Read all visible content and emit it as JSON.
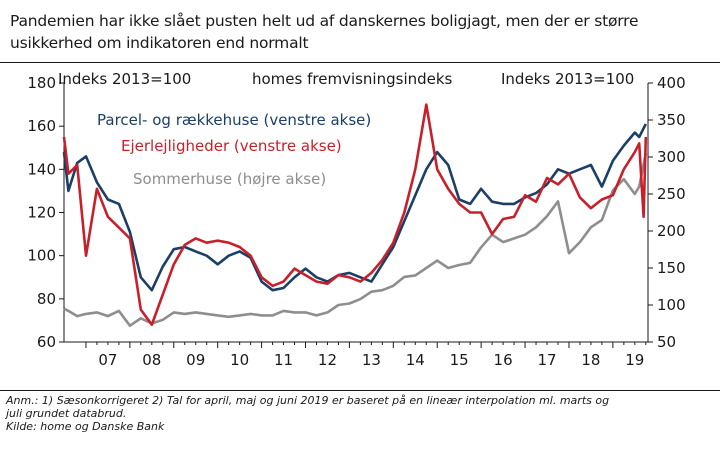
{
  "title_lines": [
    "Pandemien har ikke slået pusten helt ud af danskernes boligjagt, men der er større",
    "usikkerhed om indikatoren end normalt"
  ],
  "header_left": "Indeks 2013=100",
  "header_center": "homes fremvisningsindeks",
  "header_right": "Indeks 2013=100",
  "legend": [
    "Parcel- og rækkehuse (venstre akse)",
    "Ejerlejligheder (venstre akse)",
    "Sommerhuse (højre akse)"
  ],
  "notes": [
    "Anm.: 1) Sæsonkorrigeret 2) Tal for april, maj og juni 2019 er baseret på en lineær interpolation ml. marts og",
    "juli grundet databrud.",
    "Kilde: home og Danske Bank"
  ],
  "colors": {
    "houses": "#1b3f66",
    "apartments": "#c8202b",
    "summerhouses": "#8e8e8e",
    "axis": "#1a1a1a"
  },
  "chart_data": {
    "type": "line",
    "x_range": [
      2006.5,
      2019.8
    ],
    "x_tick_labels": [
      "07",
      "08",
      "09",
      "10",
      "11",
      "12",
      "13",
      "14",
      "15",
      "16",
      "17",
      "18",
      "19"
    ],
    "x_tick_positions": [
      2007,
      2008,
      2009,
      2010,
      2011,
      2012,
      2013,
      2014,
      2015,
      2016,
      2017,
      2018,
      2019
    ],
    "y_left": {
      "ylim": [
        60,
        180
      ],
      "ticks": [
        60,
        80,
        100,
        120,
        140,
        160,
        180
      ]
    },
    "y_right": {
      "ylim": [
        50,
        400
      ],
      "ticks": [
        50,
        100,
        150,
        200,
        250,
        300,
        350,
        400
      ]
    },
    "series": [
      {
        "name": "Parcel- og rækkehuse (venstre akse)",
        "axis": "left",
        "x": [
          2006.5,
          2006.6,
          2006.8,
          2007.0,
          2007.25,
          2007.5,
          2007.75,
          2008.0,
          2008.25,
          2008.5,
          2008.75,
          2009.0,
          2009.25,
          2009.5,
          2009.75,
          2010.0,
          2010.25,
          2010.5,
          2010.75,
          2011.0,
          2011.25,
          2011.5,
          2011.75,
          2012.0,
          2012.25,
          2012.5,
          2012.75,
          2013.0,
          2013.25,
          2013.5,
          2013.75,
          2014.0,
          2014.25,
          2014.5,
          2014.75,
          2015.0,
          2015.25,
          2015.5,
          2015.75,
          2016.0,
          2016.25,
          2016.5,
          2016.75,
          2017.0,
          2017.25,
          2017.5,
          2017.75,
          2018.0,
          2018.25,
          2018.5,
          2018.75,
          2019.0,
          2019.25,
          2019.5,
          2019.6,
          2019.75
        ],
        "y": [
          148,
          130,
          143,
          146,
          134,
          126,
          124,
          111,
          90,
          84,
          95,
          103,
          104,
          102,
          100,
          96,
          100,
          102,
          99,
          88,
          84,
          85,
          90,
          94,
          90,
          88,
          91,
          92,
          90,
          88,
          96,
          104,
          116,
          128,
          140,
          148,
          142,
          126,
          124,
          131,
          125,
          124,
          124,
          127,
          129,
          133,
          140,
          138,
          140,
          142,
          132,
          144,
          151,
          157,
          155,
          161
        ]
      },
      {
        "name": "Ejerlejligheder (venstre akse)",
        "axis": "left",
        "x": [
          2006.5,
          2006.6,
          2006.8,
          2007.0,
          2007.25,
          2007.5,
          2007.75,
          2008.0,
          2008.25,
          2008.5,
          2008.75,
          2009.0,
          2009.25,
          2009.5,
          2009.75,
          2010.0,
          2010.25,
          2010.5,
          2010.75,
          2011.0,
          2011.25,
          2011.5,
          2011.75,
          2012.0,
          2012.25,
          2012.5,
          2012.75,
          2013.0,
          2013.25,
          2013.5,
          2013.75,
          2014.0,
          2014.25,
          2014.5,
          2014.75,
          2015.0,
          2015.25,
          2015.5,
          2015.75,
          2016.0,
          2016.25,
          2016.5,
          2016.75,
          2017.0,
          2017.25,
          2017.5,
          2017.75,
          2018.0,
          2018.25,
          2018.5,
          2018.75,
          2019.0,
          2019.25,
          2019.5,
          2019.6,
          2019.7,
          2019.75
        ],
        "y": [
          155,
          138,
          142,
          100,
          131,
          118,
          113,
          108,
          75,
          68,
          82,
          96,
          105,
          108,
          106,
          107,
          106,
          104,
          100,
          90,
          86,
          88,
          94,
          91,
          88,
          87,
          91,
          90,
          88,
          92,
          98,
          106,
          120,
          140,
          170,
          140,
          131,
          124,
          120,
          120,
          110,
          117,
          118,
          128,
          125,
          136,
          133,
          138,
          127,
          122,
          126,
          128,
          140,
          148,
          152,
          118,
          155
        ]
      },
      {
        "name": "Sommerhuse (højre akse)",
        "axis": "right",
        "x": [
          2006.5,
          2006.6,
          2006.8,
          2007.0,
          2007.25,
          2007.5,
          2007.75,
          2008.0,
          2008.25,
          2008.5,
          2008.75,
          2009.0,
          2009.25,
          2009.5,
          2009.75,
          2010.0,
          2010.25,
          2010.5,
          2010.75,
          2011.0,
          2011.25,
          2011.5,
          2011.75,
          2012.0,
          2012.25,
          2012.5,
          2012.75,
          2013.0,
          2013.25,
          2013.5,
          2013.75,
          2014.0,
          2014.25,
          2014.5,
          2014.75,
          2015.0,
          2015.25,
          2015.5,
          2015.75,
          2016.0,
          2016.25,
          2016.5,
          2016.75,
          2017.0,
          2017.25,
          2017.5,
          2017.75,
          2018.0,
          2018.25,
          2018.5,
          2018.75,
          2019.0,
          2019.25,
          2019.5,
          2019.6,
          2019.75
        ],
        "y": [
          95,
          92,
          85,
          88,
          90,
          85,
          92,
          72,
          82,
          75,
          80,
          90,
          88,
          90,
          88,
          86,
          84,
          86,
          88,
          86,
          86,
          92,
          90,
          90,
          86,
          90,
          100,
          102,
          108,
          118,
          120,
          126,
          138,
          140,
          150,
          160,
          150,
          154,
          157,
          178,
          195,
          185,
          190,
          195,
          205,
          220,
          240,
          170,
          185,
          205,
          215,
          255,
          270,
          250,
          260,
          305
        ]
      }
    ]
  }
}
